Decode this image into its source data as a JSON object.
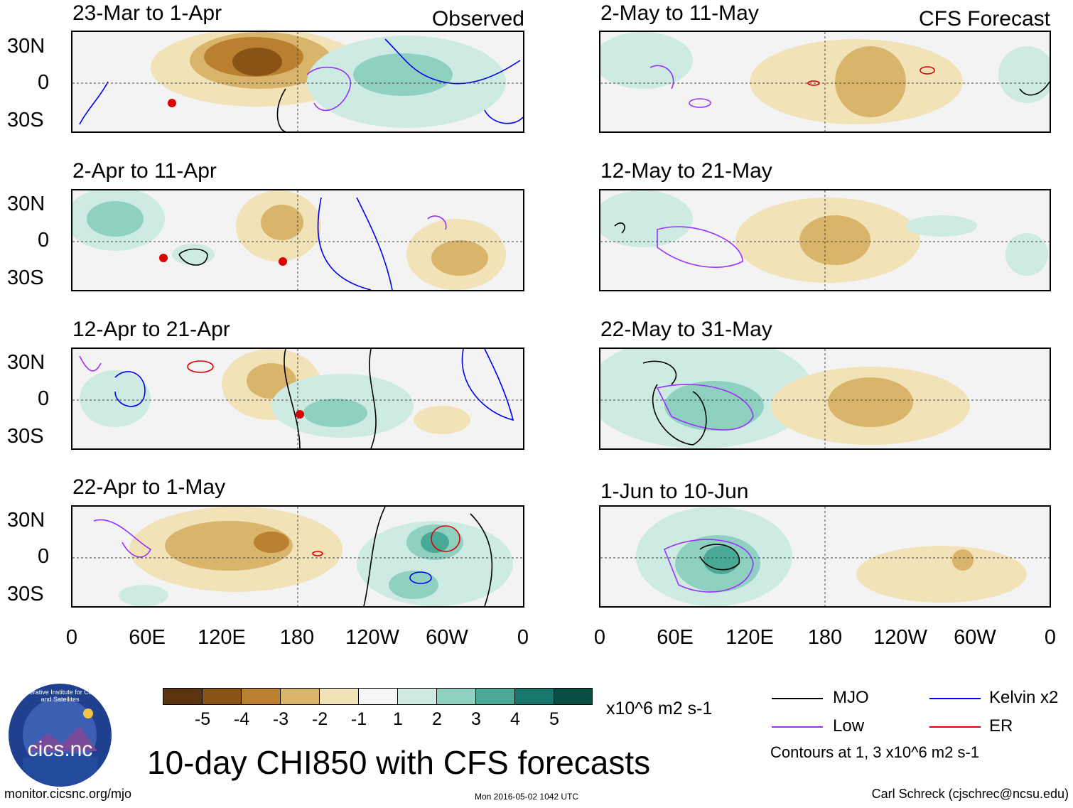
{
  "labels": {
    "observed": "Observed",
    "forecast": "CFS Forecast",
    "main_title": "10-day CHI850 with CFS forecasts",
    "units": "x10^6 m2 s-1",
    "contours_note": "Contours at 1, 3 x10^6 m2 s-1",
    "url": "monitor.cicsnc.org/mjo",
    "timestamp": "Mon 2016-05-02 1042 UTC",
    "author": "Carl Schreck (cjschrec@ncsu.edu)",
    "logo_text": "cics.nc",
    "logo_ring": "Cooperative Institute for Climate and Satellites"
  },
  "axes": {
    "lat": [
      "30N",
      "0",
      "30S"
    ],
    "lon": [
      "0",
      "60E",
      "120E",
      "180",
      "120W",
      "60W",
      "0"
    ]
  },
  "panels": {
    "observed": [
      {
        "title": "23-Mar to 1-Apr"
      },
      {
        "title": "2-Apr to 11-Apr"
      },
      {
        "title": "12-Apr to 21-Apr"
      },
      {
        "title": "22-Apr to 1-May"
      }
    ],
    "forecast": [
      {
        "title": "2-May to 11-May"
      },
      {
        "title": "12-May to 21-May"
      },
      {
        "title": "22-May to 31-May"
      },
      {
        "title": "1-Jun to 10-Jun"
      }
    ]
  },
  "colorbar": {
    "colors": [
      "#5a3510",
      "#8a5316",
      "#b8802f",
      "#d9b46b",
      "#f2e2b8",
      "#f7f7f7",
      "#cdebe2",
      "#8fd1c0",
      "#4aa996",
      "#16776a",
      "#0a4d42"
    ],
    "labels": [
      "-5",
      "-4",
      "-3",
      "-2",
      "-1",
      "1",
      "2",
      "3",
      "4",
      "5"
    ]
  },
  "legend": {
    "mjo": {
      "label": "MJO",
      "color": "#000000"
    },
    "low": {
      "label": "Low",
      "color": "#9b30ff"
    },
    "kelvin": {
      "label": "Kelvin x2",
      "color": "#0000ee"
    },
    "er": {
      "label": "ER",
      "color": "#dd0000"
    }
  }
}
